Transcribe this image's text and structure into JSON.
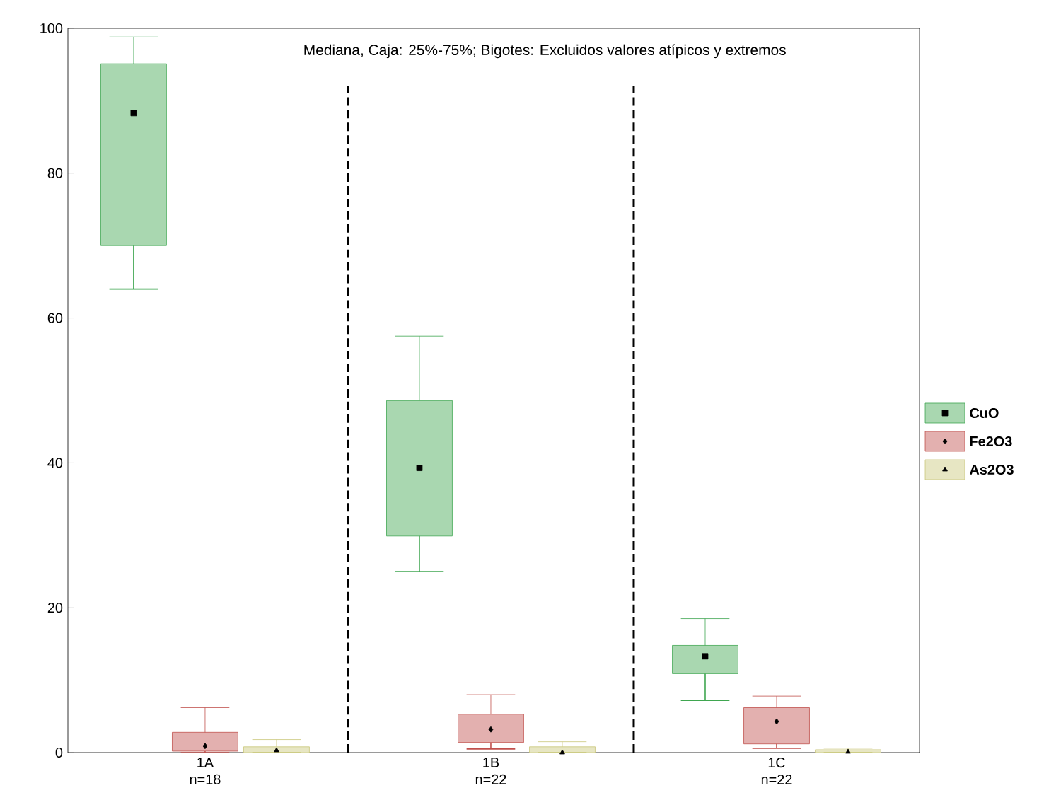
{
  "chart_data": {
    "type": "box",
    "categories": [
      "1A n=18",
      "1B n=22",
      "1C n=22"
    ],
    "ylim": [
      0,
      100
    ],
    "yticks": [
      0,
      20,
      40,
      60,
      80,
      100
    ],
    "legend": "right",
    "grid": false,
    "annotations": [
      "Mediana, Caja: 25%-75%; Bigotes: Excluidos valores atípicos y extremos"
    ],
    "series": [
      {
        "name": "CuO",
        "color": "#3fa650",
        "marker": "square",
        "boxes": [
          {
            "low": 64,
            "q1": 70,
            "median": 88.3,
            "q3": 95.1,
            "high": 98.8
          },
          {
            "low": 25,
            "q1": 29.9,
            "median": 39.3,
            "q3": 48.6,
            "high": 57.5
          },
          {
            "low": 7.2,
            "q1": 10.9,
            "median": 13.3,
            "q3": 14.8,
            "high": 18.5
          }
        ]
      },
      {
        "name": "Fe2O3",
        "color": "#c0504d",
        "marker": "diamond",
        "boxes": [
          {
            "low": 0,
            "q1": 0.2,
            "median": 0.9,
            "q3": 2.8,
            "high": 6.2
          },
          {
            "low": 0.5,
            "q1": 1.4,
            "median": 3.2,
            "q3": 5.3,
            "high": 8
          },
          {
            "low": 0.6,
            "q1": 1.2,
            "median": 4.3,
            "q3": 6.2,
            "high": 7.8
          }
        ]
      },
      {
        "name": "As2O3",
        "color": "#c9c77a",
        "marker": "triangle",
        "boxes": [
          {
            "low": 0,
            "q1": 0,
            "median": 0.3,
            "q3": 0.8,
            "high": 1.8
          },
          {
            "low": 0,
            "q1": 0,
            "median": 0,
            "q3": 0.8,
            "high": 1.5
          },
          {
            "low": 0,
            "q1": 0,
            "median": 0.1,
            "q3": 0.4,
            "high": 0.6
          }
        ]
      }
    ]
  }
}
